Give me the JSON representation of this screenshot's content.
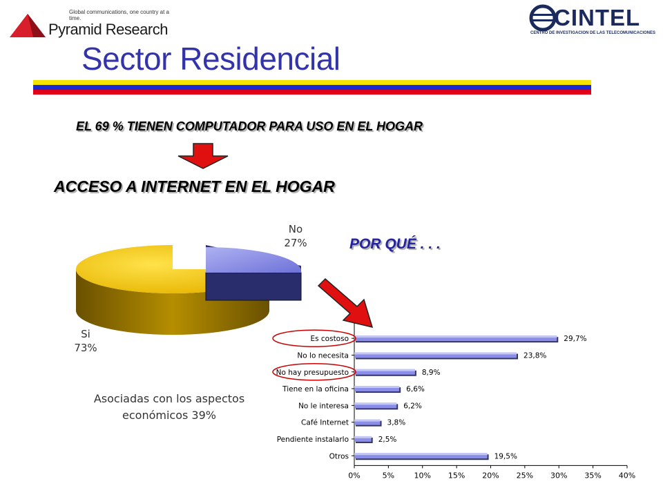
{
  "header": {
    "left_logo_tagline": "Global communications, one country at a time.",
    "left_logo_name": "Pyramid Research",
    "right_logo_name": "CINTEL",
    "right_logo_subtitle": "CENTRO DE INVESTIGACION DE LAS TELECOMUNICACIONES",
    "title": "Sector Residencial"
  },
  "colors": {
    "title": "#3333aa",
    "flag_yellow": "#f5e400",
    "flag_blue": "#1a2ad0",
    "flag_red": "#e0001a",
    "pie_si": "#f2c200",
    "pie_no": "#8b8fe6",
    "bar": "#8a8ee8",
    "arrow": "#e01010",
    "highlight_ellipse": "#cc0000"
  },
  "headline": "EL 69 % TIENEN COMPUTADOR PARA USO EN EL HOGAR",
  "subheadline": "ACCESO A INTERNET EN EL HOGAR",
  "why_label": "POR QUÉ . . .",
  "note": "Asociadas con los aspectos económicos 39%",
  "chart_data": [
    {
      "type": "pie",
      "style": "3d",
      "categories": [
        "Si",
        "No"
      ],
      "values": [
        73,
        27
      ],
      "labels": [
        {
          "name": "Si",
          "value": "73%"
        },
        {
          "name": "No",
          "value": "27%"
        }
      ],
      "exploded": "No"
    },
    {
      "type": "bar",
      "orientation": "horizontal",
      "categories": [
        "Es costoso",
        "No lo necesita",
        "No hay presupuesto",
        "Tiene en la oficina",
        "No le interesa",
        "Café Internet",
        "Pendiente instalarlo",
        "Otros"
      ],
      "values": [
        29.7,
        23.8,
        8.9,
        6.6,
        6.2,
        3.8,
        2.5,
        19.5
      ],
      "data_labels": [
        "29,7%",
        "23,8%",
        "8,9%",
        "6,6%",
        "6,2%",
        "3,8%",
        "2,5%",
        "19,5%"
      ],
      "xticks": [
        "0%",
        "5%",
        "10%",
        "15%",
        "20%",
        "25%",
        "30%",
        "35%",
        "40%"
      ],
      "xlim": [
        0,
        40
      ],
      "highlighted": [
        "Es costoso",
        "No hay presupuesto"
      ]
    }
  ]
}
